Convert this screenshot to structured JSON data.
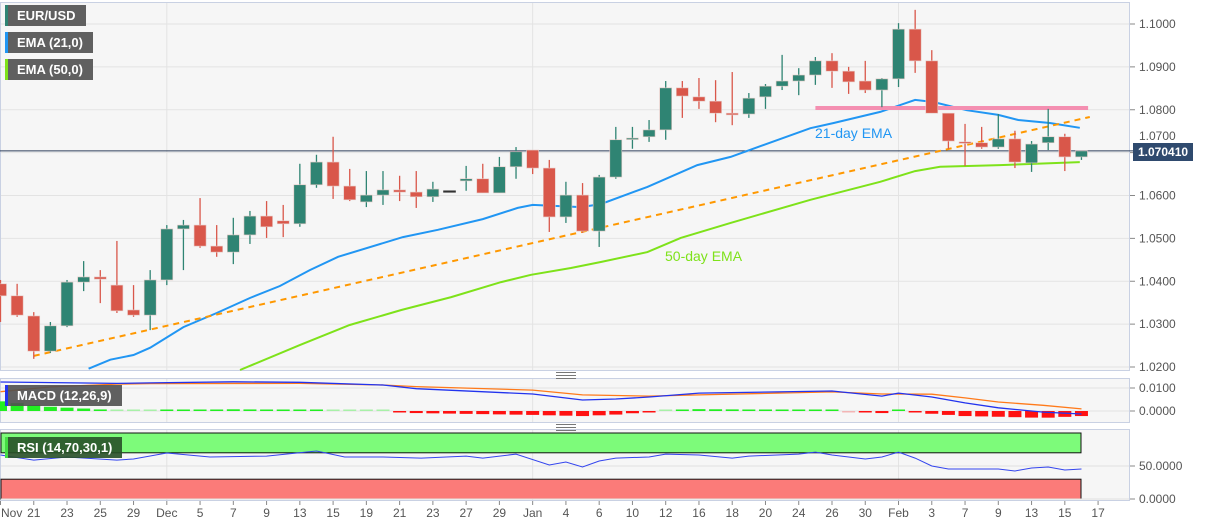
{
  "legend": {
    "symbol": "EUR/USD",
    "ema21": "EMA (21,0)",
    "ema50": "EMA (50,0)",
    "macd": "MACD (12,26,9)",
    "rsi": "RSI (14,70,30,1)"
  },
  "current_price": "1.070410",
  "colors": {
    "up": "#2f8473",
    "down": "#d9574a",
    "ema21": "#2196f3",
    "ema50": "#7ee21a",
    "trendline": "#ff9800",
    "resistance": "#f48fb1",
    "macd": "#2233ee",
    "signal": "#ff7a1a",
    "hist_up": "#22ee22",
    "hist_down": "#ff1111",
    "rsi_line": "#3344ee",
    "overbought": "#7dfb7a",
    "oversold": "#fb7b79"
  },
  "chart_data": [
    {
      "type": "candlestick",
      "title": "EUR/USD",
      "ylim": [
        1.02,
        1.1
      ],
      "y_ticks": [
        "1.1000",
        "1.0900",
        "1.0800",
        "1.0700",
        "1.0600",
        "1.0500",
        "1.0400",
        "1.0300",
        "1.0200"
      ],
      "x_ticks": [
        [
          "Nov",
          0
        ],
        [
          "21",
          2
        ],
        [
          "23",
          4
        ],
        [
          "25",
          6
        ],
        [
          "29",
          8
        ],
        [
          "Dec",
          10
        ],
        [
          "5",
          12
        ],
        [
          "7",
          14
        ],
        [
          "9",
          16
        ],
        [
          "13",
          18
        ],
        [
          "15",
          20
        ],
        [
          "19",
          22
        ],
        [
          "21",
          24
        ],
        [
          "23",
          26
        ],
        [
          "27",
          28
        ],
        [
          "29",
          30
        ],
        [
          "Jan",
          32
        ],
        [
          "4",
          34
        ],
        [
          "6",
          36
        ],
        [
          "10",
          38
        ],
        [
          "12",
          40
        ],
        [
          "16",
          42
        ],
        [
          "18",
          44
        ],
        [
          "20",
          46
        ],
        [
          "24",
          48
        ],
        [
          "26",
          50
        ],
        [
          "30",
          52
        ],
        [
          "Feb",
          54
        ],
        [
          "3",
          56
        ],
        [
          "7",
          58
        ],
        [
          "9",
          60
        ],
        [
          "13",
          62
        ],
        [
          "15",
          64
        ],
        [
          "17",
          66
        ]
      ],
      "ohlc": [
        [
          1.0394,
          1.0403,
          1.0305,
          1.0366
        ],
        [
          1.0366,
          1.0394,
          1.0317,
          1.0321
        ],
        [
          1.0319,
          1.0328,
          1.0219,
          1.0237
        ],
        [
          1.0237,
          1.0305,
          1.0233,
          1.0296
        ],
        [
          1.0296,
          1.0403,
          1.0293,
          1.0398
        ],
        [
          1.0398,
          1.0447,
          1.0377,
          1.041
        ],
        [
          1.041,
          1.0426,
          1.0349,
          1.0405
        ],
        [
          1.0391,
          1.0494,
          1.0326,
          1.0331
        ],
        [
          1.0333,
          1.0391,
          1.0317,
          1.0321
        ],
        [
          1.0321,
          1.0426,
          1.0286,
          1.0403
        ],
        [
          1.0403,
          1.0531,
          1.0391,
          1.0522
        ],
        [
          1.0522,
          1.0543,
          1.0426,
          1.0531
        ],
        [
          1.0531,
          1.0594,
          1.0478,
          1.0482
        ],
        [
          1.0482,
          1.0531,
          1.0457,
          1.0468
        ],
        [
          1.0468,
          1.0548,
          1.044,
          1.0508
        ],
        [
          1.0508,
          1.0564,
          1.0487,
          1.0552
        ],
        [
          1.0552,
          1.0587,
          1.0501,
          1.0527
        ],
        [
          1.0541,
          1.0578,
          1.0503,
          1.0534
        ],
        [
          1.0534,
          1.0674,
          1.0527,
          1.0625
        ],
        [
          1.0625,
          1.0695,
          1.0618,
          1.0678
        ],
        [
          1.0678,
          1.0737,
          1.0592,
          1.0622
        ],
        [
          1.0622,
          1.0662,
          1.0587,
          1.059
        ],
        [
          1.0585,
          1.0657,
          1.0573,
          1.0601
        ],
        [
          1.0601,
          1.0657,
          1.0578,
          1.0613
        ],
        [
          1.0613,
          1.0646,
          1.0587,
          1.0608
        ],
        [
          1.0608,
          1.0657,
          1.0571,
          1.0597
        ],
        [
          1.0597,
          1.0632,
          1.0585,
          1.0615
        ],
        [
          1.0611,
          1.0611,
          1.0611,
          1.0611
        ],
        [
          1.0634,
          1.0669,
          1.0611,
          1.0639
        ],
        [
          1.0639,
          1.0674,
          1.0606,
          1.0606
        ],
        [
          1.0606,
          1.069,
          1.0606,
          1.0667
        ],
        [
          1.0667,
          1.0713,
          1.0639,
          1.0702
        ],
        [
          1.0706,
          1.0706,
          1.065,
          1.0664
        ],
        [
          1.0664,
          1.0683,
          1.0515,
          1.055
        ],
        [
          1.055,
          1.0632,
          1.0536,
          1.0601
        ],
        [
          1.0601,
          1.0629,
          1.0513,
          1.0517
        ],
        [
          1.0517,
          1.0648,
          1.048,
          1.0643
        ],
        [
          1.0643,
          1.076,
          1.0639,
          1.073
        ],
        [
          1.0732,
          1.076,
          1.0709,
          1.0734
        ],
        [
          1.0737,
          1.0776,
          1.0725,
          1.0753
        ],
        [
          1.0753,
          1.0867,
          1.073,
          1.0851
        ],
        [
          1.0851,
          1.0867,
          1.0781,
          1.0832
        ],
        [
          1.083,
          1.0874,
          1.0802,
          1.082
        ],
        [
          1.082,
          1.0869,
          1.0771,
          1.0792
        ],
        [
          1.0792,
          1.0888,
          1.0764,
          1.0788
        ],
        [
          1.079,
          1.0839,
          1.0781,
          1.0827
        ],
        [
          1.083,
          1.086,
          1.0802,
          1.0855
        ],
        [
          1.0855,
          1.0928,
          1.0846,
          1.0867
        ],
        [
          1.0867,
          1.0897,
          1.0834,
          1.0881
        ],
        [
          1.0881,
          1.0923,
          1.0858,
          1.0914
        ],
        [
          1.0914,
          1.0932,
          1.0851,
          1.089
        ],
        [
          1.089,
          1.09,
          1.0837,
          1.0865
        ],
        [
          1.0867,
          1.0914,
          1.0839,
          1.0846
        ],
        [
          1.0846,
          1.0874,
          1.0806,
          1.0872
        ],
        [
          1.0872,
          1.1002,
          1.0853,
          1.0988
        ],
        [
          1.0988,
          1.1033,
          1.0886,
          1.0914
        ],
        [
          1.0914,
          1.0939,
          1.0792,
          1.0792
        ],
        [
          1.0792,
          1.0792,
          1.0709,
          1.0727
        ],
        [
          1.0725,
          1.0767,
          1.0669,
          1.0723
        ],
        [
          1.0723,
          1.076,
          1.0709,
          1.0713
        ],
        [
          1.0713,
          1.079,
          1.0709,
          1.0732
        ],
        [
          1.0732,
          1.0751,
          1.0664,
          1.0678
        ],
        [
          1.0676,
          1.0727,
          1.0655,
          1.072
        ],
        [
          1.0723,
          1.0802,
          1.0706,
          1.0737
        ],
        [
          1.0737,
          1.0744,
          1.0657,
          1.069
        ],
        [
          1.069,
          1.0704,
          1.0683,
          1.0704
        ]
      ],
      "ema21": [
        [
          5.3,
          1.0196
        ],
        [
          6.6,
          1.0217
        ],
        [
          8,
          1.0228
        ],
        [
          9,
          1.0245
        ],
        [
          11,
          1.0293
        ],
        [
          13,
          1.0326
        ],
        [
          15,
          1.0361
        ],
        [
          16.8,
          1.0389
        ],
        [
          18.6,
          1.0426
        ],
        [
          20.3,
          1.0457
        ],
        [
          24.2,
          1.0503
        ],
        [
          26.3,
          1.052
        ],
        [
          29,
          1.0545
        ],
        [
          31.1,
          1.0571
        ],
        [
          32,
          1.0578
        ],
        [
          34.9,
          1.0573
        ],
        [
          36.1,
          1.058
        ],
        [
          38.9,
          1.062
        ],
        [
          41.9,
          1.0671
        ],
        [
          43.9,
          1.069
        ],
        [
          45.9,
          1.0718
        ],
        [
          48.7,
          1.0757
        ],
        [
          50.1,
          1.0769
        ],
        [
          52.9,
          1.0795
        ],
        [
          55,
          1.0823
        ],
        [
          56.1,
          1.0818
        ],
        [
          58.1,
          1.0799
        ],
        [
          60,
          1.0788
        ],
        [
          61.2,
          1.0776
        ],
        [
          63.1,
          1.0769
        ],
        [
          64.9,
          1.0758
        ]
      ],
      "ema50": [
        [
          14.4,
          1.0193
        ],
        [
          18,
          1.0251
        ],
        [
          21,
          1.0298
        ],
        [
          24.1,
          1.0333
        ],
        [
          27.1,
          1.0363
        ],
        [
          30.1,
          1.0398
        ],
        [
          31.9,
          1.0415
        ],
        [
          34.3,
          1.0431
        ],
        [
          36.1,
          1.0445
        ],
        [
          38.9,
          1.0468
        ],
        [
          40.9,
          1.0501
        ],
        [
          43.9,
          1.0536
        ],
        [
          48.7,
          1.059
        ],
        [
          52.9,
          1.0632
        ],
        [
          55,
          1.0657
        ],
        [
          56.5,
          1.0667
        ],
        [
          60.1,
          1.0671
        ],
        [
          64.9,
          1.0678
        ]
      ],
      "trendline": [
        [
          2,
          1.0226
        ],
        [
          65.5,
          1.0783
        ]
      ],
      "resistance": [
        [
          49,
          1.0804
        ],
        [
          65.4,
          1.0804
        ]
      ],
      "annotations": {
        "ema21_label": "21-day EMA",
        "ema50_label": "50-day EMA"
      }
    },
    {
      "type": "line",
      "title": "MACD (12,26,9)",
      "ylim": [
        -0.0015,
        0.0135
      ],
      "y_ticks": [
        "0.0100",
        "0.0000"
      ],
      "macd": [
        [
          0,
          0.0126
        ],
        [
          7,
          0.012
        ],
        [
          9,
          0.0122
        ],
        [
          14,
          0.0127
        ],
        [
          18,
          0.0125
        ],
        [
          23,
          0.0113
        ],
        [
          25,
          0.0097
        ],
        [
          32,
          0.0074
        ],
        [
          35,
          0.0048
        ],
        [
          37,
          0.0052
        ],
        [
          39,
          0.0061
        ],
        [
          42,
          0.0078
        ],
        [
          50,
          0.0087
        ],
        [
          53,
          0.0065
        ],
        [
          54,
          0.0078
        ],
        [
          56,
          0.0061
        ],
        [
          58,
          0.0035
        ],
        [
          60,
          0.0014
        ],
        [
          62.7,
          -0.0005
        ],
        [
          65,
          -0.0013
        ]
      ],
      "signal": [
        [
          0,
          0.0084
        ],
        [
          3,
          0.0105
        ],
        [
          7,
          0.0117
        ],
        [
          9,
          0.0119
        ],
        [
          18,
          0.012
        ],
        [
          23,
          0.0113
        ],
        [
          25,
          0.0106
        ],
        [
          32,
          0.0091
        ],
        [
          35,
          0.007
        ],
        [
          39,
          0.0065
        ],
        [
          42,
          0.007
        ],
        [
          50,
          0.0083
        ],
        [
          53,
          0.0074
        ],
        [
          56,
          0.0073
        ],
        [
          58,
          0.0057
        ],
        [
          60,
          0.0039
        ],
        [
          62.7,
          0.0025
        ],
        [
          65,
          0.0009
        ]
      ]
    },
    {
      "type": "line",
      "title": "RSI (14,70,30,1)",
      "ylim": [
        0,
        100
      ],
      "y_ticks": [
        "50.0000",
        "0.0000"
      ],
      "bands": {
        "overbought": 70,
        "oversold": 30
      },
      "rsi": [
        [
          0,
          66.7
        ],
        [
          2,
          59
        ],
        [
          4,
          63.6
        ],
        [
          7,
          59
        ],
        [
          8,
          60.6
        ],
        [
          10,
          69.7
        ],
        [
          12.6,
          63.6
        ],
        [
          16,
          65
        ],
        [
          19,
          72.7
        ],
        [
          20.7,
          63.6
        ],
        [
          23,
          63.6
        ],
        [
          25.3,
          62
        ],
        [
          28,
          65
        ],
        [
          29,
          62
        ],
        [
          31,
          68
        ],
        [
          33,
          51.5
        ],
        [
          34,
          56
        ],
        [
          35,
          48.5
        ],
        [
          36,
          57.6
        ],
        [
          37,
          62
        ],
        [
          39,
          63.6
        ],
        [
          40,
          68
        ],
        [
          42,
          66.7
        ],
        [
          44,
          62
        ],
        [
          45,
          65
        ],
        [
          48,
          68
        ],
        [
          49,
          71
        ],
        [
          50,
          66.7
        ],
        [
          52,
          60.6
        ],
        [
          53,
          63.6
        ],
        [
          54,
          71
        ],
        [
          55,
          62
        ],
        [
          56,
          50
        ],
        [
          57,
          45.5
        ],
        [
          60,
          45.5
        ],
        [
          61,
          42.4
        ],
        [
          62,
          47
        ],
        [
          63,
          48.5
        ],
        [
          64,
          44
        ],
        [
          65,
          45.5
        ]
      ]
    }
  ]
}
